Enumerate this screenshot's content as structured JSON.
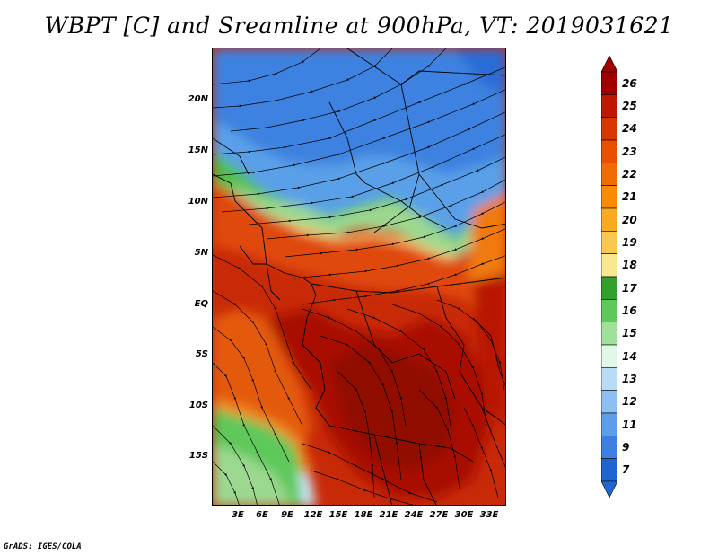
{
  "title": "WBPT [C] and Sreamline at 900hPa, VT: 2019031621",
  "credit": "GrADS: IGES/COLA",
  "map": {
    "variable": "WBPT [C]",
    "overlay": "Sreamline",
    "level": "900hPa",
    "valid_time": "2019031621",
    "lat_labels": [
      "20N",
      "15N",
      "10N",
      "5N",
      "EQ",
      "5S",
      "10S",
      "15S"
    ],
    "lon_labels": [
      "3E",
      "6E",
      "9E",
      "12E",
      "15E",
      "18E",
      "21E",
      "24E",
      "27E",
      "30E",
      "33E"
    ]
  },
  "colorbar": {
    "labels": [
      "26",
      "25",
      "24",
      "23",
      "22",
      "21",
      "20",
      "19",
      "18",
      "17",
      "16",
      "15",
      "14",
      "13",
      "12",
      "11",
      "9",
      "7"
    ],
    "colors": [
      "#a00000",
      "#c01800",
      "#d83800",
      "#e85000",
      "#f06c00",
      "#f88c00",
      "#f8aa20",
      "#f8c850",
      "#f8e890",
      "#32a02c",
      "#5ec85a",
      "#a0e09a",
      "#e0f8e8",
      "#b8dcf8",
      "#8cc0f0",
      "#5e9ee8",
      "#3e80e0",
      "#2064d0"
    ],
    "top_arrow_color": "#a00000",
    "bottom_arrow_color": "#2064d0"
  }
}
